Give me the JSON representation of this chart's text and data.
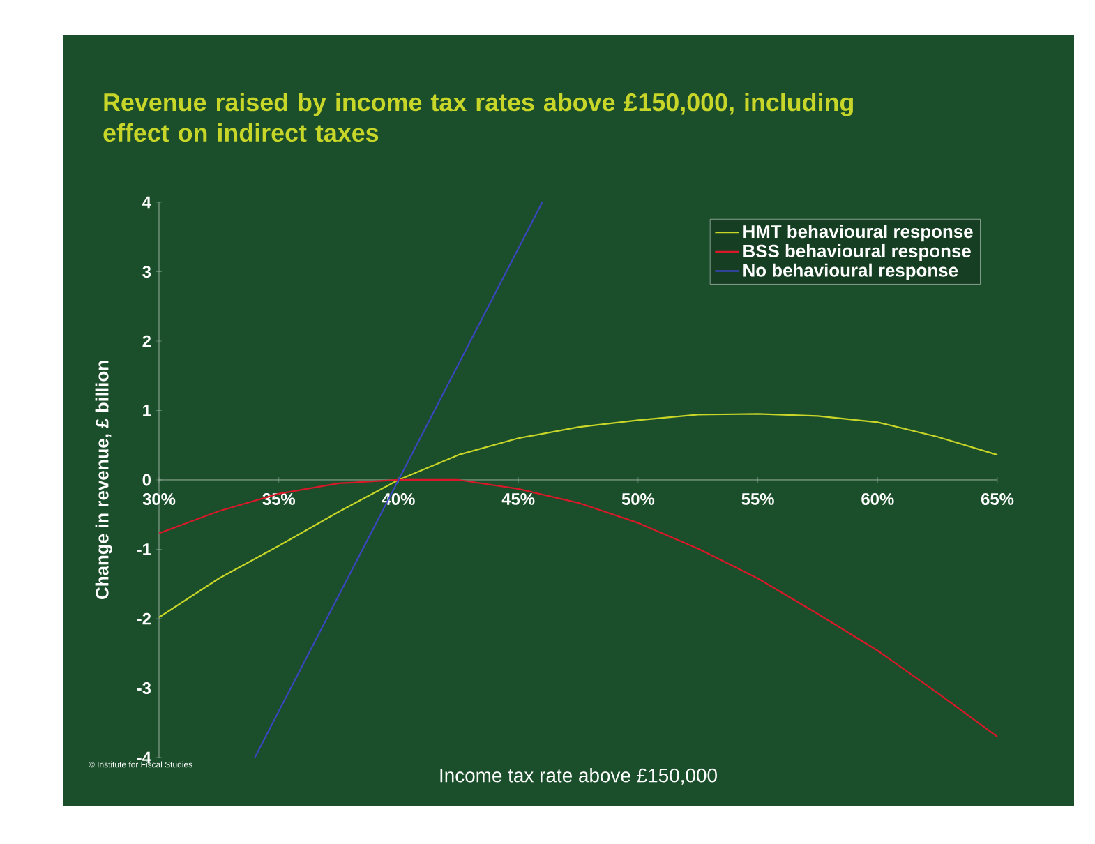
{
  "chart_data": {
    "type": "line",
    "title": "Revenue raised by income tax rates above £150,000, including effect on indirect taxes",
    "xlabel": "Income tax rate above £150,000",
    "ylabel": "Change in revenue, £ billion",
    "annotations": [
      "© Institute for Fiscal Studies"
    ],
    "x": [
      30,
      32.5,
      35,
      37.5,
      40,
      42.5,
      45,
      47.5,
      50,
      52.5,
      55,
      57.5,
      60,
      62.5,
      65
    ],
    "series": [
      {
        "name": "HMT behavioural response",
        "color": "#c8d62a",
        "values": [
          -1.98,
          -1.42,
          -0.95,
          -0.46,
          0,
          0.36,
          0.6,
          0.76,
          0.86,
          0.94,
          0.95,
          0.92,
          0.83,
          0.62,
          0.36
        ]
      },
      {
        "name": "BSS behavioural response",
        "color": "#d9182a",
        "values": [
          -0.77,
          -0.45,
          -0.2,
          -0.05,
          0,
          0,
          -0.13,
          -0.33,
          -0.62,
          -0.99,
          -1.42,
          -1.93,
          -2.46,
          -3.07,
          -3.7
        ]
      },
      {
        "name": "No behavioural response",
        "color": "#3a46c0",
        "x": [
          34,
          46
        ],
        "values": [
          -4,
          4
        ]
      }
    ],
    "xlim": [
      30,
      65
    ],
    "ylim": [
      -4,
      4
    ],
    "xticks": [
      {
        "value": 30,
        "label": "30%"
      },
      {
        "value": 35,
        "label": "35%"
      },
      {
        "value": 40,
        "label": "40%"
      },
      {
        "value": 45,
        "label": "45%"
      },
      {
        "value": 50,
        "label": "50%"
      },
      {
        "value": 55,
        "label": "55%"
      },
      {
        "value": 60,
        "label": "60%"
      },
      {
        "value": 65,
        "label": "65%"
      }
    ],
    "yticks": [
      -4,
      -3,
      -2,
      -1,
      0,
      1,
      2,
      3,
      4
    ],
    "grid": false,
    "legend": "top right",
    "marker": "none",
    "line_style": "solid"
  }
}
